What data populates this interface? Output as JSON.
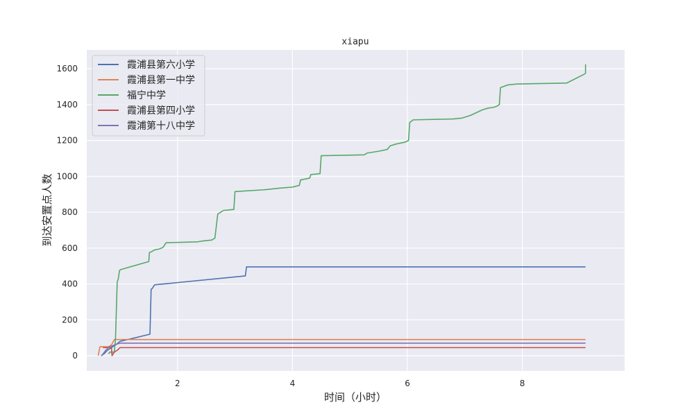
{
  "chart_data": {
    "type": "line",
    "title": "xiapu",
    "xlabel": "时间（小时）",
    "ylabel": "到达安置点人数",
    "xlim": [
      0.42,
      9.78
    ],
    "ylim": [
      -85,
      1705
    ],
    "xticks": [
      2,
      4,
      6,
      8
    ],
    "yticks": [
      0,
      200,
      400,
      600,
      800,
      1000,
      1200,
      1400,
      1600
    ],
    "grid": true,
    "legend_position": "top-left",
    "series": [
      {
        "name": "霞浦县第六小学",
        "color": "#4c72b0",
        "x": [
          0.67,
          0.72,
          0.75,
          0.78,
          0.85,
          0.92,
          1.0,
          1.2,
          1.52,
          1.54,
          1.56,
          1.6,
          3.18,
          3.2,
          9.1
        ],
        "y": [
          0,
          10,
          20,
          30,
          45,
          60,
          80,
          95,
          120,
          370,
          375,
          395,
          445,
          495,
          495
        ]
      },
      {
        "name": "霞浦县第一中学",
        "color": "#dd8452",
        "x": [
          0.62,
          0.65,
          0.8,
          0.85,
          0.9,
          9.1
        ],
        "y": [
          0,
          50,
          50,
          60,
          90,
          90
        ]
      },
      {
        "name": "福宁中学",
        "color": "#55a868",
        "x": [
          0.8,
          0.82,
          0.9,
          0.92,
          0.93,
          0.95,
          0.97,
          0.99,
          1.01,
          1.5,
          1.51,
          1.55,
          1.6,
          1.68,
          1.72,
          1.75,
          1.8,
          2.35,
          2.45,
          2.6,
          2.62,
          2.65,
          2.7,
          2.8,
          2.97,
          2.98,
          3.0,
          3.5,
          3.8,
          4.0,
          4.12,
          4.14,
          4.3,
          4.32,
          4.48,
          4.5,
          5.25,
          5.3,
          5.5,
          5.65,
          5.7,
          5.8,
          5.95,
          6.02,
          6.04,
          6.1,
          6.8,
          6.95,
          7.0,
          7.1,
          7.2,
          7.3,
          7.4,
          7.5,
          7.55,
          7.6,
          7.62,
          7.75,
          7.9,
          8.77,
          9.08,
          9.1,
          9.1
        ],
        "y": [
          10,
          20,
          20,
          90,
          200,
          410,
          430,
          475,
          480,
          525,
          575,
          580,
          590,
          595,
          600,
          605,
          630,
          635,
          640,
          645,
          650,
          655,
          790,
          810,
          815,
          815,
          915,
          925,
          935,
          940,
          950,
          980,
          990,
          1010,
          1015,
          1115,
          1120,
          1130,
          1140,
          1150,
          1170,
          1180,
          1190,
          1200,
          1300,
          1315,
          1320,
          1325,
          1330,
          1340,
          1355,
          1370,
          1380,
          1385,
          1390,
          1400,
          1495,
          1510,
          1515,
          1520,
          1570,
          1575,
          1625
        ]
      },
      {
        "name": "霞浦县第四小学",
        "color": "#c44e52",
        "x": [
          0.7,
          0.85,
          0.86,
          0.9,
          0.95,
          1.0,
          9.1
        ],
        "y": [
          45,
          45,
          0,
          20,
          30,
          45,
          45
        ]
      },
      {
        "name": "霞浦第十八中学",
        "color": "#8172b3",
        "x": [
          0.68,
          0.75,
          0.8,
          0.9,
          1.0,
          9.1
        ],
        "y": [
          0,
          30,
          45,
          60,
          70,
          70
        ]
      }
    ]
  }
}
